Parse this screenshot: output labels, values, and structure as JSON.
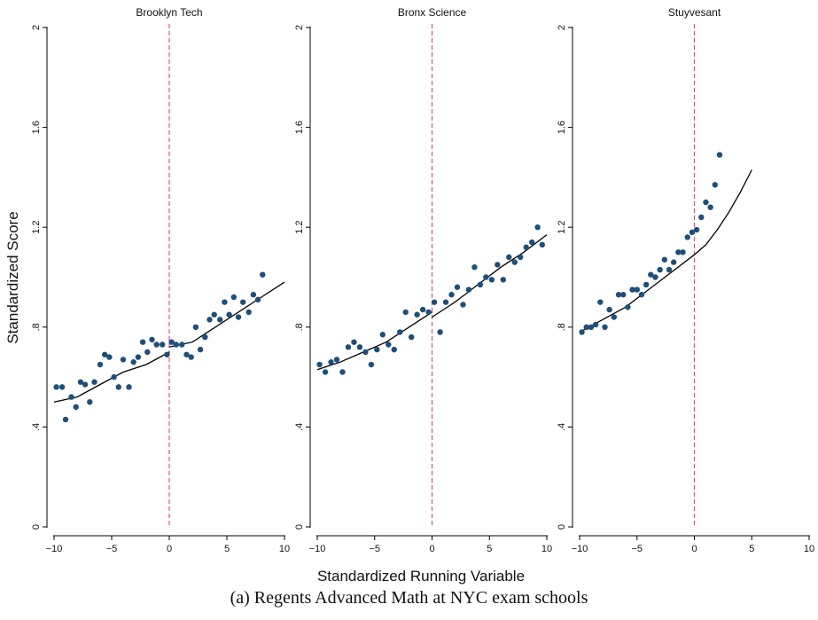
{
  "chart_data": {
    "type": "scatter",
    "ylabel": "Standardized Score",
    "xlabel": "Standardized Running Variable",
    "caption": "(a) Regents Advanced Math at NYC exam schools",
    "xlim": [
      -10,
      10
    ],
    "ylim": [
      0,
      2
    ],
    "xticks": [
      -10,
      -5,
      0,
      5,
      10
    ],
    "yticks": [
      0,
      0.4,
      0.8,
      1.2,
      1.6,
      2
    ],
    "ytick_labels": [
      "0",
      ".4",
      ".8",
      "1.2",
      "1.6",
      "2"
    ],
    "cutoff": 0,
    "colors": {
      "points": "#1f4e79",
      "fit": "#000000",
      "cutoff": "#e0507a"
    },
    "panels": [
      {
        "title": "Brooklyn Tech",
        "points": [
          [
            -9.8,
            0.56
          ],
          [
            -9.3,
            0.56
          ],
          [
            -9.0,
            0.43
          ],
          [
            -8.5,
            0.52
          ],
          [
            -8.1,
            0.48
          ],
          [
            -7.7,
            0.58
          ],
          [
            -7.3,
            0.57
          ],
          [
            -6.9,
            0.5
          ],
          [
            -6.5,
            0.58
          ],
          [
            -6.0,
            0.65
          ],
          [
            -5.6,
            0.69
          ],
          [
            -5.2,
            0.68
          ],
          [
            -4.8,
            0.6
          ],
          [
            -4.4,
            0.56
          ],
          [
            -4.0,
            0.67
          ],
          [
            -3.5,
            0.56
          ],
          [
            -3.1,
            0.66
          ],
          [
            -2.7,
            0.68
          ],
          [
            -2.3,
            0.74
          ],
          [
            -1.9,
            0.7
          ],
          [
            -1.5,
            0.75
          ],
          [
            -1.1,
            0.73
          ],
          [
            -0.6,
            0.73
          ],
          [
            -0.2,
            0.69
          ],
          [
            0.2,
            0.74
          ],
          [
            0.6,
            0.73
          ],
          [
            1.1,
            0.73
          ],
          [
            1.5,
            0.69
          ],
          [
            1.9,
            0.68
          ],
          [
            2.3,
            0.8
          ],
          [
            2.7,
            0.71
          ],
          [
            3.1,
            0.76
          ],
          [
            3.5,
            0.83
          ],
          [
            3.9,
            0.85
          ],
          [
            4.4,
            0.83
          ],
          [
            4.8,
            0.9
          ],
          [
            5.2,
            0.85
          ],
          [
            5.6,
            0.92
          ],
          [
            6.0,
            0.84
          ],
          [
            6.4,
            0.9
          ],
          [
            6.9,
            0.86
          ],
          [
            7.3,
            0.93
          ],
          [
            7.7,
            0.91
          ],
          [
            8.1,
            1.01
          ]
        ],
        "fit_left": [
          [
            -10,
            0.5
          ],
          [
            -8,
            0.52
          ],
          [
            -6,
            0.57
          ],
          [
            -4,
            0.62
          ],
          [
            -2,
            0.65
          ],
          [
            0,
            0.7
          ]
        ],
        "fit_right": [
          [
            0,
            0.72
          ],
          [
            2,
            0.74
          ],
          [
            4,
            0.8
          ],
          [
            6,
            0.86
          ],
          [
            8,
            0.92
          ],
          [
            10,
            0.98
          ]
        ]
      },
      {
        "title": "Bronx Science",
        "points": [
          [
            -9.8,
            0.65
          ],
          [
            -9.3,
            0.62
          ],
          [
            -8.8,
            0.66
          ],
          [
            -8.3,
            0.67
          ],
          [
            -7.8,
            0.62
          ],
          [
            -7.3,
            0.72
          ],
          [
            -6.8,
            0.74
          ],
          [
            -6.3,
            0.72
          ],
          [
            -5.8,
            0.7
          ],
          [
            -5.3,
            0.65
          ],
          [
            -4.8,
            0.71
          ],
          [
            -4.3,
            0.77
          ],
          [
            -3.8,
            0.73
          ],
          [
            -3.3,
            0.71
          ],
          [
            -2.8,
            0.78
          ],
          [
            -2.3,
            0.86
          ],
          [
            -1.8,
            0.76
          ],
          [
            -1.3,
            0.85
          ],
          [
            -0.8,
            0.87
          ],
          [
            -0.3,
            0.86
          ],
          [
            0.2,
            0.9
          ],
          [
            0.7,
            0.78
          ],
          [
            1.2,
            0.9
          ],
          [
            1.7,
            0.93
          ],
          [
            2.2,
            0.96
          ],
          [
            2.7,
            0.89
          ],
          [
            3.2,
            0.95
          ],
          [
            3.7,
            1.04
          ],
          [
            4.2,
            0.97
          ],
          [
            4.7,
            1.0
          ],
          [
            5.2,
            0.99
          ],
          [
            5.7,
            1.05
          ],
          [
            6.2,
            0.99
          ],
          [
            6.7,
            1.08
          ],
          [
            7.2,
            1.06
          ],
          [
            7.7,
            1.08
          ],
          [
            8.2,
            1.12
          ],
          [
            8.7,
            1.14
          ],
          [
            9.2,
            1.2
          ],
          [
            9.6,
            1.13
          ]
        ],
        "fit_left": [
          [
            -10,
            0.63
          ],
          [
            -8,
            0.66
          ],
          [
            -6,
            0.7
          ],
          [
            -4,
            0.74
          ],
          [
            -2,
            0.8
          ],
          [
            0,
            0.86
          ]
        ],
        "fit_right": [
          [
            0,
            0.84
          ],
          [
            2,
            0.9
          ],
          [
            4,
            0.97
          ],
          [
            6,
            1.04
          ],
          [
            8,
            1.1
          ],
          [
            10,
            1.17
          ]
        ]
      },
      {
        "title": "Stuyvesant",
        "points": [
          [
            -9.8,
            0.78
          ],
          [
            -9.4,
            0.8
          ],
          [
            -9.0,
            0.8
          ],
          [
            -8.6,
            0.81
          ],
          [
            -8.2,
            0.9
          ],
          [
            -7.8,
            0.8
          ],
          [
            -7.4,
            0.87
          ],
          [
            -7.0,
            0.84
          ],
          [
            -6.6,
            0.93
          ],
          [
            -6.2,
            0.93
          ],
          [
            -5.8,
            0.88
          ],
          [
            -5.4,
            0.95
          ],
          [
            -5.0,
            0.95
          ],
          [
            -4.6,
            0.93
          ],
          [
            -4.2,
            0.97
          ],
          [
            -3.8,
            1.01
          ],
          [
            -3.4,
            1.0
          ],
          [
            -3.0,
            1.03
          ],
          [
            -2.6,
            1.07
          ],
          [
            -2.2,
            1.03
          ],
          [
            -1.8,
            1.06
          ],
          [
            -1.4,
            1.1
          ],
          [
            -1.0,
            1.1
          ],
          [
            -0.6,
            1.16
          ],
          [
            -0.2,
            1.18
          ],
          [
            0.2,
            1.19
          ],
          [
            0.6,
            1.24
          ],
          [
            1.0,
            1.3
          ],
          [
            1.4,
            1.28
          ],
          [
            1.8,
            1.37
          ],
          [
            2.2,
            1.49
          ]
        ],
        "fit_left": [
          [
            -10,
            0.78
          ],
          [
            -8,
            0.83
          ],
          [
            -6,
            0.88
          ],
          [
            -4,
            0.95
          ],
          [
            -2,
            1.02
          ],
          [
            0,
            1.09
          ]
        ],
        "fit_right": [
          [
            0,
            1.09
          ],
          [
            1,
            1.13
          ],
          [
            2,
            1.19
          ],
          [
            3,
            1.26
          ],
          [
            4,
            1.34
          ],
          [
            5,
            1.43
          ]
        ]
      }
    ]
  }
}
